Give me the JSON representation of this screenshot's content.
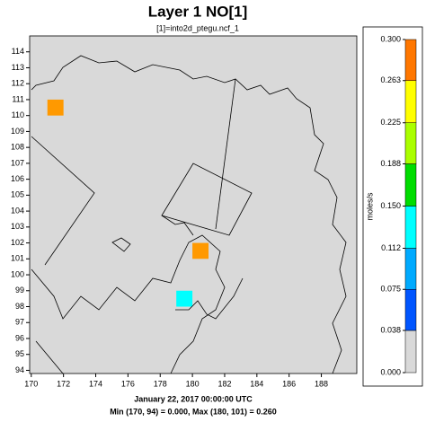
{
  "chart_data": {
    "type": "tile",
    "title": "Layer 1 NO[1]",
    "subtitle": "[1]=into2d_ptegu.ncf_1",
    "date": "January 22, 2017 00:00:00 UTC",
    "stats": "Min (170, 94) = 0.000, Max (180, 101) = 0.260",
    "x": [
      171,
      180,
      179
    ],
    "y": [
      110,
      101,
      98
    ],
    "values": [
      0.255,
      0.26,
      0.13
    ],
    "colors": [
      "#ff9900",
      "#ff9900",
      "#00ffff"
    ],
    "xlim": [
      169.9,
      190.2
    ],
    "ylim": [
      93.8,
      115
    ],
    "xticks": [
      170,
      172,
      174,
      176,
      178,
      180,
      182,
      184,
      186,
      188
    ],
    "yticks": [
      94,
      95,
      96,
      97,
      98,
      99,
      100,
      101,
      102,
      103,
      104,
      105,
      106,
      107,
      108,
      109,
      110,
      111,
      112,
      113,
      114
    ],
    "background": "#d9d9d9",
    "colorbar": {
      "label": "moles/s",
      "ticks": [
        {
          "value": 0,
          "label": "0.000"
        },
        0.038,
        0.075,
        0.112,
        {
          "value": 0.15,
          "label": "0.150"
        },
        0.188,
        0.225,
        0.263,
        {
          "value": 0.3,
          "label": "0.300"
        }
      ],
      "colors": [
        "#d9d9d9",
        "#0055ff",
        "#00aaff",
        "#00ffff",
        "#00dd00",
        "#aaff00",
        "#ffff00",
        "#ff7700"
      ]
    }
  }
}
